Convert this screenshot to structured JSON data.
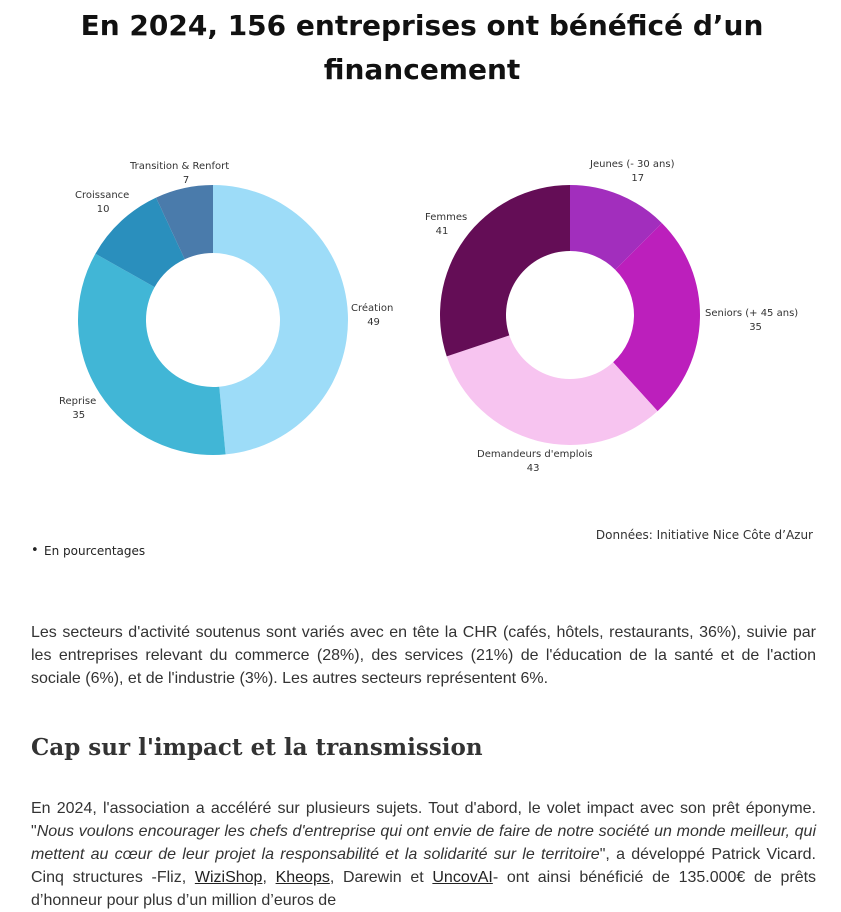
{
  "title": {
    "line1": "En 2024, 156 entreprises ont bénéficé d’un",
    "line2": "financement"
  },
  "chart_data": [
    {
      "type": "pie",
      "donut": true,
      "slices": [
        {
          "label": "Création",
          "value": 49,
          "color": "#9ddcf8"
        },
        {
          "label": "Reprise",
          "value": 35,
          "color": "#41b6d6"
        },
        {
          "label": "Croissance",
          "value": 10,
          "color": "#2a8fbd"
        },
        {
          "label": "Transition & Renfort",
          "value": 7,
          "color": "#4a7bab"
        }
      ]
    },
    {
      "type": "pie",
      "donut": true,
      "slices": [
        {
          "label": "Jeunes (- 30 ans)",
          "value": 17,
          "color": "#a22ebd"
        },
        {
          "label": "Seniors (+ 45 ans)",
          "value": 35,
          "color": "#bc1fbc"
        },
        {
          "label": "Demandeurs d'emplois",
          "value": 43,
          "color": "#f7c4f0"
        },
        {
          "label": "Femmes",
          "value": 41,
          "color": "#640d56"
        }
      ]
    }
  ],
  "source": "Données: Initiative Nice Côte d’Azur",
  "note": "En pourcentages",
  "paragraph1": "Les secteurs d'activité soutenus sont variés avec en tête la CHR (cafés, hôtels, restaurants, 36%), suivie par les entreprises relevant du commerce (28%), des services (21%) de l'éducation de la santé et de l'action sociale (6%), et de l'industrie (3%). Les autres secteurs représentent 6%.",
  "heading": "Cap sur l'impact et la transmission",
  "paragraph2": {
    "part1": "En 2024, l'association a accéléré sur plusieurs sujets. Tout d'abord, le volet impact avec son prêt éponyme. \"",
    "quote": "Nous voulons encourager les chefs d'entreprise qui ont envie de faire de notre société un monde meilleur, qui mettent au cœur de leur projet la responsabilité et la solidarité sur le territoire",
    "part2": "\", a développé Patrick Vicard. Cinq structures -Fliz, ",
    "link1": "WiziShop",
    "sep1": ", ",
    "link2": "Kheops",
    "part3": ", Darewin et ",
    "link3": "UncovAI",
    "part4": "- ont ainsi bénéficié de 135.000€ de prêts d’honneur pour plus d’un million d’euros de"
  }
}
